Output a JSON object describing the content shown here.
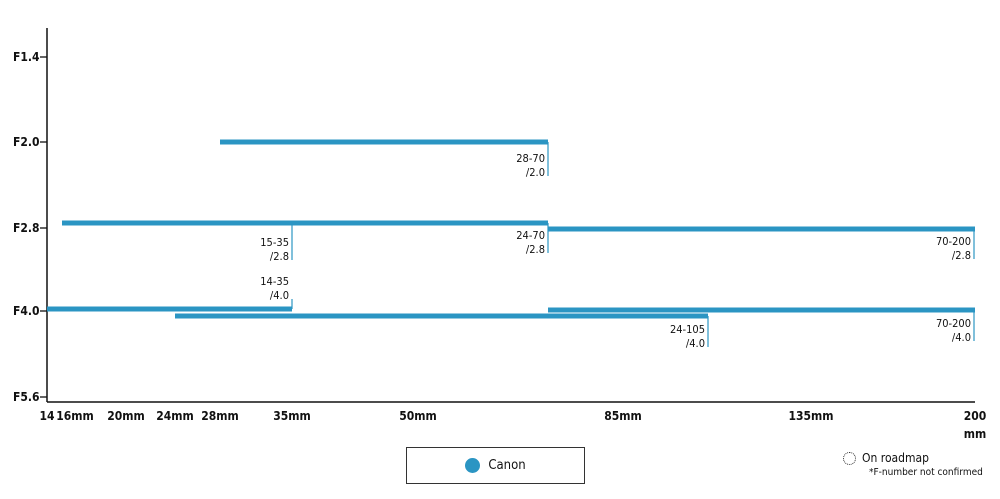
{
  "chart_data": {
    "type": "range-bar",
    "y_ticks": [
      "F1.4",
      "F2.0",
      "F2.8",
      "F4.0",
      "F5.6"
    ],
    "x_ticks": [
      "14",
      "16mm",
      "20mm",
      "24mm",
      "28mm",
      "35mm",
      "50mm",
      "85mm",
      "135mm",
      "200"
    ],
    "x_unit": "mm",
    "series": [
      {
        "name": "Canon",
        "color": "#2b95c3"
      }
    ],
    "lenses": [
      {
        "label_line1": "28-70",
        "label_line2": "/2.0",
        "from": "28mm",
        "to": "70mm",
        "aperture": "F2.0"
      },
      {
        "label_line1": "15-35",
        "label_line2": "/2.8",
        "from": "15mm",
        "to": "35mm",
        "aperture": "F2.8"
      },
      {
        "label_line1": "24-70",
        "label_line2": "/2.8",
        "from": "24mm",
        "to": "70mm",
        "aperture": "F2.8"
      },
      {
        "label_line1": "70-200",
        "label_line2": "/2.8",
        "from": "70mm",
        "to": "200mm",
        "aperture": "F2.8"
      },
      {
        "label_line1": "14-35",
        "label_line2": "/4.0",
        "from": "14mm",
        "to": "35mm",
        "aperture": "F4.0"
      },
      {
        "label_line1": "24-105",
        "label_line2": "/4.0",
        "from": "24mm",
        "to": "105mm",
        "aperture": "F4.0"
      },
      {
        "label_line1": "70-200",
        "label_line2": "/4.0",
        "from": "70mm",
        "to": "200mm",
        "aperture": "F4.0"
      }
    ]
  },
  "legend": {
    "label": "Canon"
  },
  "roadmap": {
    "label": "On roadmap",
    "note": "*F-number not confirmed"
  }
}
